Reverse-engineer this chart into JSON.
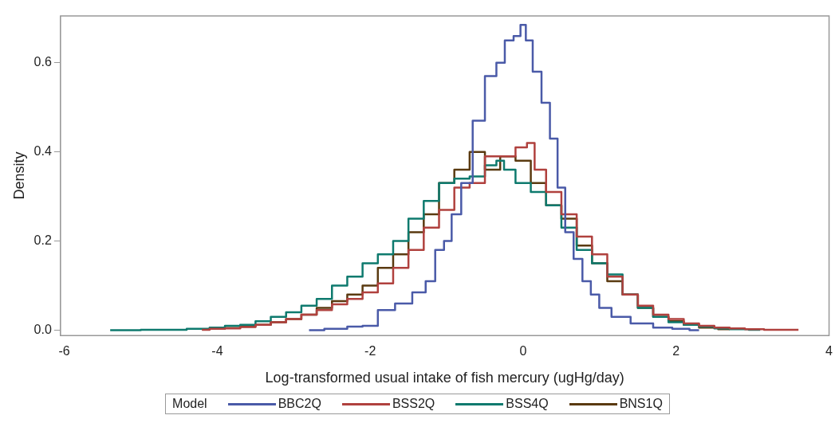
{
  "chart_data": {
    "type": "step",
    "xlabel": "Log-transformed usual intake of fish mercury (ugHg/day)",
    "ylabel": "Density",
    "legend_title": "Model",
    "legend": "bottom",
    "grid": false,
    "xlim": [
      -6.05,
      4
    ],
    "xticks": [
      -6,
      -4,
      -2,
      0,
      2,
      4
    ],
    "ylim": [
      -0.012,
      0.705
    ],
    "yticks": [
      {
        "value": 0,
        "label": "0.0"
      },
      {
        "value": 0.2,
        "label": "0.2"
      },
      {
        "value": 0.4,
        "label": "0.4"
      },
      {
        "value": 0.6,
        "label": "0.6"
      }
    ],
    "series": [
      {
        "name": "BBC2Q",
        "color": "#4a5aa8",
        "x": [
          -2.8,
          -2.4,
          -2.2,
          -2.0,
          -1.8,
          -1.55,
          -1.35,
          -1.2,
          -1.1,
          -0.97,
          -0.9,
          -0.72,
          -0.6,
          -0.4,
          -0.3,
          -0.18,
          -0.07,
          0.0,
          0.07,
          0.18,
          0.3,
          0.4,
          0.5,
          0.6,
          0.72,
          0.83,
          0.94,
          1.05,
          1.26,
          1.55,
          1.85,
          2.05,
          2.3
        ],
        "values": [
          0.0,
          0.003,
          0.008,
          0.01,
          0.045,
          0.06,
          0.085,
          0.11,
          0.18,
          0.2,
          0.26,
          0.33,
          0.47,
          0.57,
          0.6,
          0.65,
          0.66,
          0.685,
          0.65,
          0.58,
          0.51,
          0.43,
          0.32,
          0.22,
          0.16,
          0.11,
          0.08,
          0.05,
          0.03,
          0.015,
          0.006,
          0.003,
          0.0
        ]
      },
      {
        "name": "BSS2Q",
        "color": "#b0413e",
        "x": [
          -4.2,
          -4.0,
          -3.8,
          -3.6,
          -3.4,
          -3.2,
          -3.0,
          -2.8,
          -2.6,
          -2.4,
          -2.2,
          -2.0,
          -1.8,
          -1.6,
          -1.4,
          -1.2,
          -1.0,
          -0.8,
          -0.6,
          -0.4,
          -0.2,
          0.0,
          0.1,
          0.2,
          0.4,
          0.6,
          0.8,
          1.0,
          1.2,
          1.4,
          1.6,
          1.8,
          2.0,
          2.2,
          2.4,
          2.6,
          2.8,
          3.0,
          3.3,
          3.6
        ],
        "values": [
          0.001,
          0.003,
          0.004,
          0.007,
          0.012,
          0.018,
          0.025,
          0.035,
          0.045,
          0.058,
          0.07,
          0.085,
          0.105,
          0.14,
          0.18,
          0.23,
          0.27,
          0.32,
          0.33,
          0.39,
          0.39,
          0.41,
          0.42,
          0.36,
          0.31,
          0.26,
          0.21,
          0.17,
          0.12,
          0.08,
          0.055,
          0.035,
          0.025,
          0.015,
          0.01,
          0.006,
          0.004,
          0.002,
          0.001,
          0.001
        ]
      },
      {
        "name": "BSS4Q",
        "color": "#0e7a6e",
        "x": [
          -5.4,
          -4.6,
          -4.2,
          -4.0,
          -3.8,
          -3.6,
          -3.4,
          -3.2,
          -3.0,
          -2.8,
          -2.6,
          -2.4,
          -2.2,
          -2.0,
          -1.8,
          -1.6,
          -1.4,
          -1.2,
          -1.0,
          -0.8,
          -0.6,
          -0.4,
          -0.3,
          -0.2,
          0.0,
          0.2,
          0.4,
          0.6,
          0.8,
          1.0,
          1.2,
          1.4,
          1.6,
          1.8,
          2.0,
          2.2,
          2.4,
          2.6,
          2.8,
          3.1
        ],
        "values": [
          0.0,
          0.001,
          0.003,
          0.006,
          0.01,
          0.012,
          0.02,
          0.03,
          0.04,
          0.055,
          0.07,
          0.1,
          0.12,
          0.15,
          0.17,
          0.2,
          0.25,
          0.29,
          0.33,
          0.34,
          0.345,
          0.37,
          0.38,
          0.36,
          0.33,
          0.31,
          0.28,
          0.23,
          0.18,
          0.15,
          0.125,
          0.08,
          0.05,
          0.03,
          0.018,
          0.012,
          0.008,
          0.004,
          0.002,
          0.001
        ]
      },
      {
        "name": "BNS1Q",
        "color": "#5a3a10",
        "x": [
          -4.2,
          -4.0,
          -3.8,
          -3.6,
          -3.4,
          -3.2,
          -3.0,
          -2.8,
          -2.6,
          -2.4,
          -2.2,
          -2.0,
          -1.8,
          -1.6,
          -1.4,
          -1.2,
          -1.0,
          -0.8,
          -0.6,
          -0.4,
          -0.2,
          0.0,
          0.2,
          0.4,
          0.6,
          0.8,
          1.0,
          1.2,
          1.4,
          1.6,
          1.8,
          2.0,
          2.2,
          2.4,
          2.7
        ],
        "values": [
          0.002,
          0.003,
          0.005,
          0.008,
          0.012,
          0.018,
          0.025,
          0.035,
          0.05,
          0.065,
          0.08,
          0.1,
          0.14,
          0.17,
          0.22,
          0.26,
          0.33,
          0.36,
          0.4,
          0.36,
          0.39,
          0.38,
          0.33,
          0.28,
          0.25,
          0.19,
          0.15,
          0.11,
          0.08,
          0.05,
          0.03,
          0.02,
          0.012,
          0.006,
          0.002
        ]
      }
    ]
  }
}
